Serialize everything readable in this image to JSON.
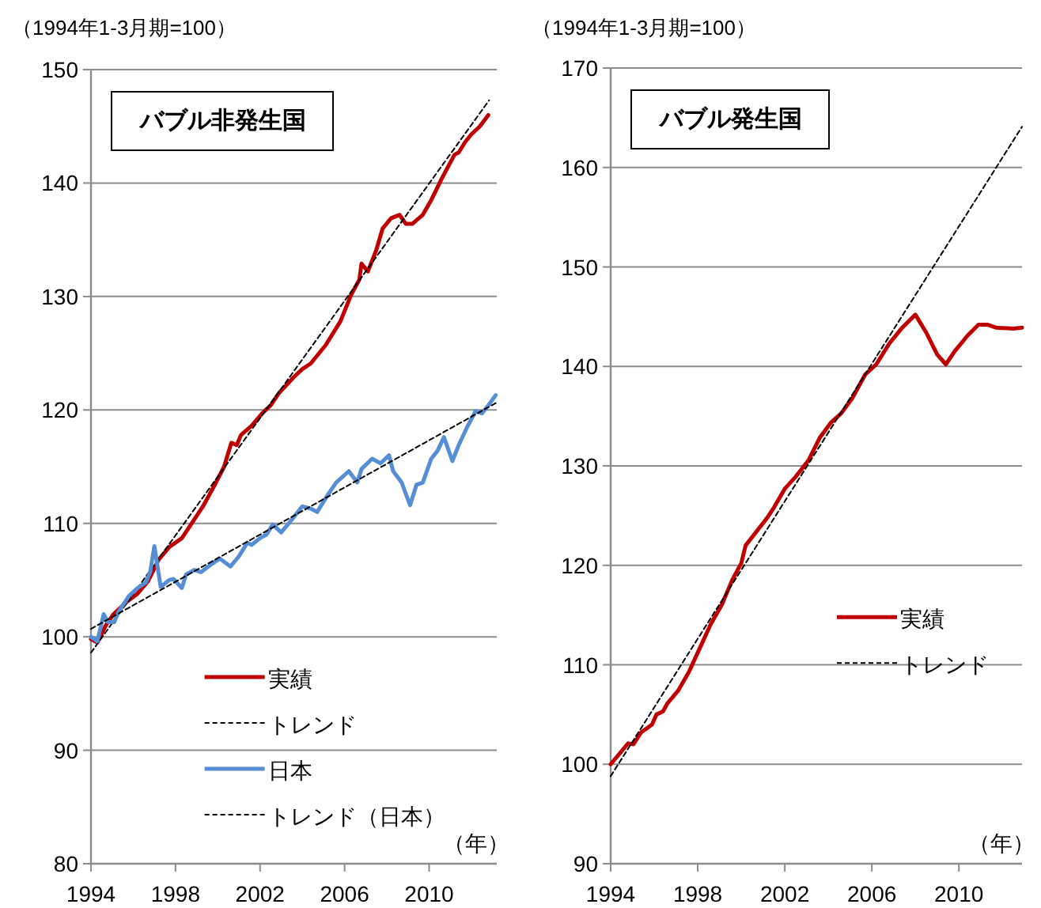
{
  "chart_data": [
    {
      "type": "line",
      "title": "バブル非発生国",
      "ylabel": "（1994年1-3月期=100）",
      "xlabel": "（年）",
      "xlim": [
        1994,
        2013.2
      ],
      "xticks": [
        1994,
        1998,
        2002,
        2006,
        2010
      ],
      "ylim": [
        80,
        150
      ],
      "yticks": [
        80,
        90,
        100,
        110,
        120,
        130,
        140,
        150
      ],
      "grid": "y",
      "legend": "bottom",
      "marker": "none",
      "series": [
        {
          "name": "実績",
          "color": "#c00000",
          "line_style": "solid",
          "x": [
            1994,
            1994.3,
            1994.7,
            1995.07,
            1995.7,
            1996.2,
            1996.7,
            1997.2,
            1997.7,
            1998.3,
            1998.8,
            1999.3,
            1999.8,
            2000.3,
            2000.64,
            2000.9,
            2001.1,
            2001.6,
            2002.1,
            2002.5,
            2002.9,
            2003.6,
            2004.0,
            2004.4,
            2005.1,
            2005.8,
            2006.3,
            2006.7,
            2006.8,
            2007.1,
            2007.5,
            2007.8,
            2008.2,
            2008.6,
            2008.9,
            2009.2,
            2009.7,
            2010.1,
            2010.6,
            2011.2,
            2011.4,
            2011.7,
            2012.0,
            2012.4,
            2012.8
          ],
          "values": [
            99.8,
            99.5,
            101,
            102,
            103.1,
            103.8,
            104.9,
            106.8,
            107.9,
            108.7,
            110.1,
            111.5,
            113.2,
            115,
            117.1,
            116.9,
            117.8,
            118.6,
            119.7,
            120.4,
            121.5,
            122.9,
            123.6,
            124.1,
            125.7,
            127.8,
            130.1,
            131.5,
            132.9,
            132.2,
            134.1,
            136.0,
            136.9,
            137.2,
            136.4,
            136.4,
            137.2,
            138.5,
            140.4,
            142.5,
            142.7,
            143.6,
            144.3,
            145.0,
            146.0
          ]
        },
        {
          "name": "トレンド",
          "color": "#000000",
          "line_style": "dashed",
          "x": [
            1994,
            2012.84
          ],
          "values": [
            98.6,
            147.3
          ]
        },
        {
          "name": "日本",
          "color": "#558ed5",
          "line_style": "solid",
          "x": [
            1994,
            1994.3,
            1994.6,
            1994.8,
            1995.1,
            1995.3,
            1995.8,
            1996.2,
            1996.6,
            1996.8,
            1997.0,
            1997.3,
            1997.7,
            1997.9,
            1998.3,
            1998.5,
            1998.9,
            1999.2,
            1999.7,
            2000.1,
            2000.6,
            2001.0,
            2001.4,
            2001.6,
            2002.0,
            2002.3,
            2002.6,
            2003.0,
            2003.4,
            2004.0,
            2004.4,
            2004.7,
            2005.2,
            2005.6,
            2006.2,
            2006.6,
            2006.8,
            2007.3,
            2007.7,
            2008.1,
            2008.3,
            2008.7,
            2009.1,
            2009.4,
            2009.7,
            2010.1,
            2010.4,
            2010.7,
            2011.1,
            2011.4,
            2011.8,
            2012.2,
            2012.5,
            2012.8,
            2013.15
          ],
          "values": [
            100,
            99.6,
            102,
            101.3,
            101.3,
            102.2,
            103.6,
            104.3,
            104.8,
            105.7,
            108.0,
            104.4,
            105,
            105.1,
            104.3,
            105.5,
            105.9,
            105.7,
            106.4,
            106.9,
            106.2,
            107.1,
            108.3,
            108.1,
            108.7,
            109.0,
            109.9,
            109.2,
            110.1,
            111.5,
            111.3,
            111.0,
            112.5,
            113.6,
            114.6,
            113.6,
            114.8,
            115.7,
            115.3,
            116.0,
            114.6,
            113.6,
            111.6,
            113.4,
            113.6,
            115.7,
            116.4,
            117.6,
            115.5,
            116.9,
            118.5,
            119.9,
            119.7,
            120.4,
            121.3
          ]
        },
        {
          "name": "トレンド（日本）",
          "color": "#000000",
          "line_style": "dashed",
          "x": [
            1994,
            2013.15
          ],
          "values": [
            100.7,
            120.6
          ]
        }
      ]
    },
    {
      "type": "line",
      "title": "バブル発生国",
      "ylabel": "（1994年1-3月期=100）",
      "xlabel": "（年）",
      "xlim": [
        1994,
        2012.9
      ],
      "xticks": [
        1994,
        1998,
        2002,
        2006,
        2010
      ],
      "ylim": [
        90,
        170
      ],
      "yticks": [
        90,
        100,
        110,
        120,
        130,
        140,
        150,
        160,
        170
      ],
      "grid": "y",
      "legend": "right",
      "marker": "none",
      "series": [
        {
          "name": "実績",
          "color": "#c00000",
          "line_style": "solid",
          "x": [
            1994,
            1994.8,
            1995.04,
            1995.4,
            1995.9,
            1996.1,
            1996.4,
            1996.6,
            1997.1,
            1997.6,
            1998.1,
            1998.6,
            1999.1,
            1999.6,
            2000.0,
            2000.2,
            2000.7,
            2001.2,
            2001.5,
            2002.0,
            2002.5,
            2003.1,
            2003.6,
            2004.1,
            2004.6,
            2005.1,
            2005.7,
            2006.2,
            2006.8,
            2007.4,
            2008.0,
            2008.5,
            2009.0,
            2009.4,
            2009.8,
            2010.4,
            2010.9,
            2011.3,
            2011.7,
            2012.5,
            2012.9
          ],
          "values": [
            100,
            102.1,
            102,
            103.2,
            104,
            105.0,
            105.3,
            106.1,
            107.4,
            109.3,
            111.7,
            114.1,
            116,
            118.6,
            120.2,
            122,
            123.4,
            124.8,
            125.8,
            127.7,
            128.9,
            130.6,
            132.8,
            134.3,
            135.3,
            136.8,
            139.2,
            140.2,
            142.3,
            143.9,
            145.2,
            143.4,
            141.2,
            140.2,
            141.5,
            143.1,
            144.2,
            144.2,
            143.9,
            143.8,
            143.9
          ]
        },
        {
          "name": "トレンド",
          "color": "#000000",
          "line_style": "dashed",
          "x": [
            1994,
            2012.9
          ],
          "values": [
            98.8,
            164.1
          ]
        }
      ]
    }
  ]
}
